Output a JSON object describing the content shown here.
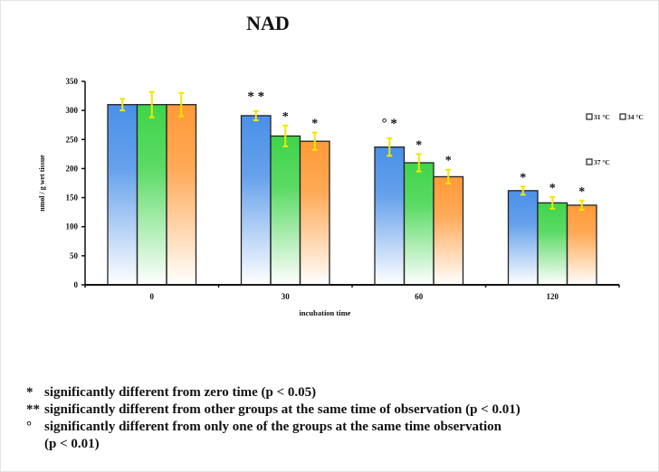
{
  "chart_data": {
    "type": "bar",
    "title": "NAD",
    "xlabel": "incubation time",
    "ylabel": "nmol / g wet tissue",
    "categories": [
      "0",
      "30",
      "60",
      "120"
    ],
    "ylim": [
      0,
      350
    ],
    "yticks": [
      0,
      50,
      100,
      150,
      200,
      250,
      300,
      350
    ],
    "grid": false,
    "legend_placement": "right",
    "series": [
      {
        "name": "31 °C",
        "color": "#4a90e8",
        "values": [
          310,
          291,
          237,
          162
        ],
        "errors": [
          10,
          8,
          15,
          7
        ]
      },
      {
        "name": "34 °C",
        "color": "#3fd44a",
        "values": [
          310,
          256,
          210,
          141
        ],
        "errors": [
          22,
          18,
          15,
          10
        ]
      },
      {
        "name": "37 °C",
        "color": "#ff9a38",
        "values": [
          310,
          247,
          186,
          137
        ],
        "errors": [
          20,
          15,
          12,
          8
        ]
      }
    ],
    "error_bar_color": "#f2e600",
    "annotations": [
      {
        "category": "30",
        "series": 0,
        "text": "* *"
      },
      {
        "category": "30",
        "series": 1,
        "text": "*"
      },
      {
        "category": "30",
        "series": 2,
        "text": "*"
      },
      {
        "category": "60",
        "series": 0,
        "text": "° *"
      },
      {
        "category": "60",
        "series": 1,
        "text": "*"
      },
      {
        "category": "60",
        "series": 2,
        "text": "*"
      },
      {
        "category": "120",
        "series": 0,
        "text": "*"
      },
      {
        "category": "120",
        "series": 1,
        "text": "*"
      },
      {
        "category": "120",
        "series": 2,
        "text": "*"
      }
    ]
  },
  "notes": [
    {
      "symbol": "*",
      "text": "significantly different from zero time  (p < 0.05)"
    },
    {
      "symbol": "**",
      "text": "significantly different from other groups at the same time of observation (p < 0.01)"
    },
    {
      "symbol": "°",
      "text": "significantly different from only one of the groups at the same time observation"
    },
    {
      "symbol": "",
      "text": "(p < 0.01)"
    }
  ]
}
